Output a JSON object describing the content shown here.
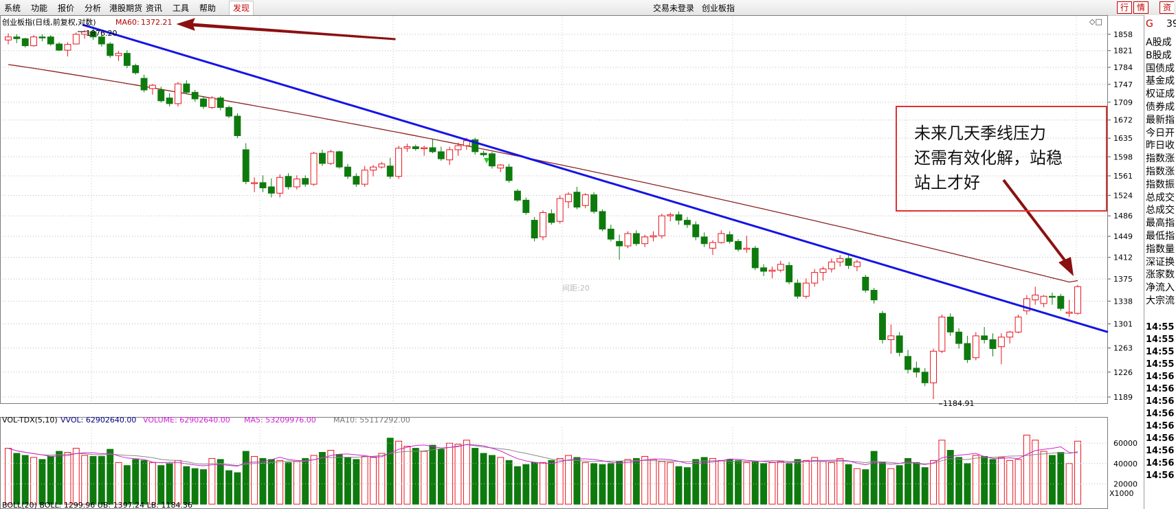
{
  "menubar": {
    "items": [
      "系统",
      "功能",
      "报价",
      "分析",
      "港股期货",
      "资讯",
      "工具",
      "帮助"
    ],
    "active_item": "发现",
    "status_login": "交易未登录",
    "status_market": "创业板指",
    "right_buttons": [
      "行",
      "情",
      "资"
    ]
  },
  "chart_header": {
    "title": "创业板指(日线,前复权,对数)",
    "ma_label": "MA60:",
    "ma_value": "1372.21"
  },
  "main_chart": {
    "price_axis_ticks": [
      "1858",
      "1821",
      "1784",
      "1747",
      "1709",
      "1672",
      "1635",
      "1598",
      "1561",
      "1524",
      "1486",
      "1449",
      "1412",
      "1375",
      "1338",
      "1301",
      "1263",
      "1226",
      "1189"
    ],
    "high_marker": "1876.20",
    "low_marker": "1184.91",
    "center_label": "间距:20",
    "window_icons": "◇□"
  },
  "annotation": {
    "lines": [
      "未来几天季线压力",
      "还需有效化解，站稳",
      "站上才好"
    ]
  },
  "volume_panel": {
    "title": "VOL-TDX(5,10)",
    "vvol_label": "VVOL: 62902640.00",
    "volume_label": "VOLUME: 62902640.00",
    "ma5_label": "MA5: 53209976.00",
    "ma10_label": "MA10: 55117292.00",
    "axis_ticks": [
      "60000",
      "40000",
      "20000"
    ],
    "unit": "X1000",
    "bottom_label": "BOLL(20) BOLL: 1299.96  UB: 1397.24  LB: 1184.36"
  },
  "right_panel": {
    "header_left": "G",
    "header_right": "39",
    "labels": [
      "A股成",
      "B股成",
      "国债成",
      "基金成",
      "权证成",
      "债券成",
      "最新指",
      "今日开",
      "昨日收",
      "指数涨",
      "指数涨",
      "指数振",
      "总成交",
      "总成交",
      "最高指",
      "最低指",
      "指数量",
      "深证换",
      "涨家数",
      "净流入",
      "大宗流"
    ],
    "times": [
      "14:55",
      "14:55",
      "14:55",
      "14:55",
      "14:56",
      "14:56",
      "14:56",
      "14:56",
      "14:56",
      "14:56",
      "14:56",
      "14:56",
      "14:56"
    ]
  },
  "colors": {
    "up": "#e8141e",
    "down": "#0e7a0e",
    "trendline": "#1414e6",
    "ma60": "#8b2222",
    "arrow": "#8b1010",
    "ma5_vol": "#d020d0",
    "annotation_border": "#e03030"
  },
  "chart_data": {
    "type": "candlestick",
    "title": "创业板指(日线,前复权,对数)",
    "ylim": [
      1180,
      1880
    ],
    "ohlc": [
      [
        1845,
        1860,
        1835,
        1852
      ],
      [
        1852,
        1858,
        1838,
        1848
      ],
      [
        1848,
        1850,
        1828,
        1832
      ],
      [
        1832,
        1856,
        1830,
        1852
      ],
      [
        1852,
        1858,
        1842,
        1850
      ],
      [
        1852,
        1856,
        1832,
        1836
      ],
      [
        1836,
        1840,
        1820,
        1822
      ],
      [
        1822,
        1840,
        1808,
        1835
      ],
      [
        1836,
        1862,
        1835,
        1858
      ],
      [
        1858,
        1868,
        1848,
        1864
      ],
      [
        1864,
        1876,
        1845,
        1852
      ],
      [
        1852,
        1858,
        1830,
        1836
      ],
      [
        1836,
        1840,
        1805,
        1810
      ],
      [
        1810,
        1820,
        1798,
        1815
      ],
      [
        1815,
        1822,
        1782,
        1788
      ],
      [
        1788,
        1792,
        1768,
        1772
      ],
      [
        1760,
        1768,
        1730,
        1735
      ],
      [
        1738,
        1748,
        1725,
        1745
      ],
      [
        1735,
        1742,
        1708,
        1712
      ],
      [
        1718,
        1728,
        1700,
        1706
      ],
      [
        1706,
        1752,
        1700,
        1748
      ],
      [
        1748,
        1756,
        1726,
        1730
      ],
      [
        1730,
        1735,
        1710,
        1716
      ],
      [
        1716,
        1722,
        1695,
        1700
      ],
      [
        1698,
        1722,
        1695,
        1718
      ],
      [
        1718,
        1722,
        1692,
        1698
      ],
      [
        1698,
        1702,
        1676,
        1680
      ],
      [
        1680,
        1686,
        1635,
        1640
      ],
      [
        1612,
        1625,
        1545,
        1550
      ],
      [
        1548,
        1558,
        1530,
        1548
      ],
      [
        1548,
        1562,
        1530,
        1538
      ],
      [
        1540,
        1556,
        1520,
        1528
      ],
      [
        1528,
        1564,
        1520,
        1558
      ],
      [
        1560,
        1566,
        1535,
        1540
      ],
      [
        1540,
        1562,
        1535,
        1555
      ],
      [
        1556,
        1562,
        1540,
        1545
      ],
      [
        1545,
        1608,
        1542,
        1605
      ],
      [
        1605,
        1612,
        1580,
        1585
      ],
      [
        1585,
        1612,
        1582,
        1608
      ],
      [
        1608,
        1610,
        1575,
        1578
      ],
      [
        1578,
        1584,
        1555,
        1560
      ],
      [
        1560,
        1566,
        1540,
        1545
      ],
      [
        1545,
        1580,
        1540,
        1572
      ],
      [
        1572,
        1582,
        1560,
        1578
      ],
      [
        1578,
        1588,
        1575,
        1584
      ],
      [
        1580,
        1596,
        1555,
        1560
      ],
      [
        1560,
        1620,
        1555,
        1615
      ],
      [
        1615,
        1624,
        1608,
        1618
      ],
      [
        1618,
        1622,
        1610,
        1614
      ],
      [
        1614,
        1620,
        1600,
        1616
      ],
      [
        1616,
        1634,
        1605,
        1608
      ],
      [
        1608,
        1618,
        1590,
        1594
      ],
      [
        1592,
        1618,
        1582,
        1612
      ],
      [
        1612,
        1626,
        1600,
        1620
      ],
      [
        1620,
        1636,
        1612,
        1630
      ],
      [
        1632,
        1636,
        1602,
        1608
      ],
      [
        1605,
        1610,
        1598,
        1602
      ],
      [
        1604,
        1608,
        1575,
        1580
      ],
      [
        1576,
        1584,
        1568,
        1582
      ],
      [
        1578,
        1584,
        1548,
        1552
      ],
      [
        1532,
        1536,
        1512,
        1515
      ],
      [
        1515,
        1520,
        1488,
        1492
      ],
      [
        1478,
        1484,
        1440,
        1446
      ],
      [
        1448,
        1496,
        1442,
        1492
      ],
      [
        1490,
        1498,
        1470,
        1474
      ],
      [
        1476,
        1524,
        1472,
        1518
      ],
      [
        1512,
        1530,
        1500,
        1526
      ],
      [
        1530,
        1540,
        1498,
        1502
      ],
      [
        1505,
        1528,
        1500,
        1525
      ],
      [
        1525,
        1530,
        1490,
        1494
      ],
      [
        1494,
        1498,
        1458,
        1462
      ],
      [
        1462,
        1470,
        1440,
        1444
      ],
      [
        1440,
        1452,
        1408,
        1432
      ],
      [
        1432,
        1458,
        1428,
        1454
      ],
      [
        1454,
        1460,
        1432,
        1436
      ],
      [
        1436,
        1452,
        1430,
        1448
      ],
      [
        1448,
        1458,
        1440,
        1450
      ],
      [
        1450,
        1490,
        1445,
        1486
      ],
      [
        1486,
        1492,
        1476,
        1488
      ],
      [
        1488,
        1494,
        1470,
        1478
      ],
      [
        1478,
        1484,
        1464,
        1470
      ],
      [
        1470,
        1476,
        1442,
        1448
      ],
      [
        1448,
        1456,
        1430,
        1436
      ],
      [
        1428,
        1442,
        1416,
        1438
      ],
      [
        1438,
        1460,
        1436,
        1454
      ],
      [
        1452,
        1458,
        1436,
        1440
      ],
      [
        1440,
        1444,
        1422,
        1426
      ],
      [
        1426,
        1450,
        1420,
        1428
      ],
      [
        1428,
        1432,
        1390,
        1394
      ],
      [
        1394,
        1400,
        1380,
        1388
      ],
      [
        1388,
        1396,
        1376,
        1390
      ],
      [
        1390,
        1406,
        1386,
        1400
      ],
      [
        1398,
        1404,
        1366,
        1370
      ],
      [
        1368,
        1374,
        1342,
        1346
      ],
      [
        1346,
        1376,
        1342,
        1368
      ],
      [
        1368,
        1392,
        1362,
        1386
      ],
      [
        1386,
        1396,
        1372,
        1392
      ],
      [
        1392,
        1410,
        1386,
        1404
      ],
      [
        1404,
        1416,
        1396,
        1410
      ],
      [
        1410,
        1418,
        1392,
        1398
      ],
      [
        1396,
        1408,
        1388,
        1404
      ],
      [
        1378,
        1382,
        1352,
        1356
      ],
      [
        1356,
        1360,
        1334,
        1340
      ],
      [
        1318,
        1322,
        1270,
        1276
      ],
      [
        1276,
        1300,
        1254,
        1282
      ],
      [
        1282,
        1288,
        1250,
        1256
      ],
      [
        1250,
        1260,
        1224,
        1230
      ],
      [
        1232,
        1242,
        1218,
        1226
      ],
      [
        1226,
        1232,
        1205,
        1210
      ],
      [
        1210,
        1262,
        1186,
        1258
      ],
      [
        1258,
        1316,
        1255,
        1312
      ],
      [
        1312,
        1318,
        1282,
        1288
      ],
      [
        1288,
        1294,
        1262,
        1270
      ],
      [
        1270,
        1282,
        1240,
        1245
      ],
      [
        1248,
        1288,
        1244,
        1282
      ],
      [
        1282,
        1296,
        1270,
        1276
      ],
      [
        1276,
        1286,
        1250,
        1262
      ],
      [
        1265,
        1286,
        1238,
        1280
      ],
      [
        1280,
        1290,
        1270,
        1288
      ],
      [
        1288,
        1316,
        1286,
        1312
      ],
      [
        1322,
        1348,
        1316,
        1342
      ],
      [
        1340,
        1362,
        1332,
        1348
      ],
      [
        1334,
        1348,
        1328,
        1346
      ],
      [
        1346,
        1352,
        1332,
        1345
      ],
      [
        1346,
        1350,
        1322,
        1326
      ],
      [
        1318,
        1340,
        1312,
        1320
      ],
      [
        1318,
        1365,
        1316,
        1362
      ]
    ],
    "ma60_start": 1790,
    "ma60_end": 1372.21,
    "volume_ylim": [
      0,
      75000
    ],
    "volume_ticks": [
      20000,
      40000,
      60000
    ],
    "volume": [
      55000,
      50000,
      48000,
      46000,
      44000,
      47000,
      52000,
      51000,
      55000,
      48000,
      47000,
      47000,
      54000,
      41000,
      38000,
      44000,
      43000,
      41000,
      38000,
      40000,
      43000,
      37000,
      35000,
      34000,
      45000,
      44000,
      33000,
      31000,
      52000,
      47000,
      45000,
      44000,
      43000,
      41000,
      42000,
      45000,
      48000,
      51000,
      53000,
      49000,
      46000,
      44000,
      47000,
      46000,
      50000,
      65000,
      62000,
      57000,
      55000,
      52000,
      58000,
      54000,
      60000,
      59000,
      63000,
      55000,
      50000,
      48000,
      46000,
      43000,
      37000,
      39000,
      41000,
      41000,
      43000,
      45000,
      48000,
      46000,
      41000,
      40000,
      39000,
      40000,
      42000,
      44000,
      45000,
      47000,
      44000,
      42000,
      41000,
      37000,
      36000,
      44000,
      46000,
      45000,
      43000,
      44000,
      43000,
      41000,
      42000,
      40000,
      41000,
      42000,
      40000,
      44000,
      43000,
      46000,
      42000,
      41000,
      45000,
      39000,
      35000,
      34000,
      52000,
      41000,
      35000,
      38000,
      45000,
      41000,
      36000,
      43000,
      63000,
      53000,
      46000,
      40000,
      48000,
      47000,
      44000,
      46000,
      43000,
      44000,
      68000,
      63000,
      52000,
      48000,
      51000,
      40000,
      62000
    ]
  }
}
